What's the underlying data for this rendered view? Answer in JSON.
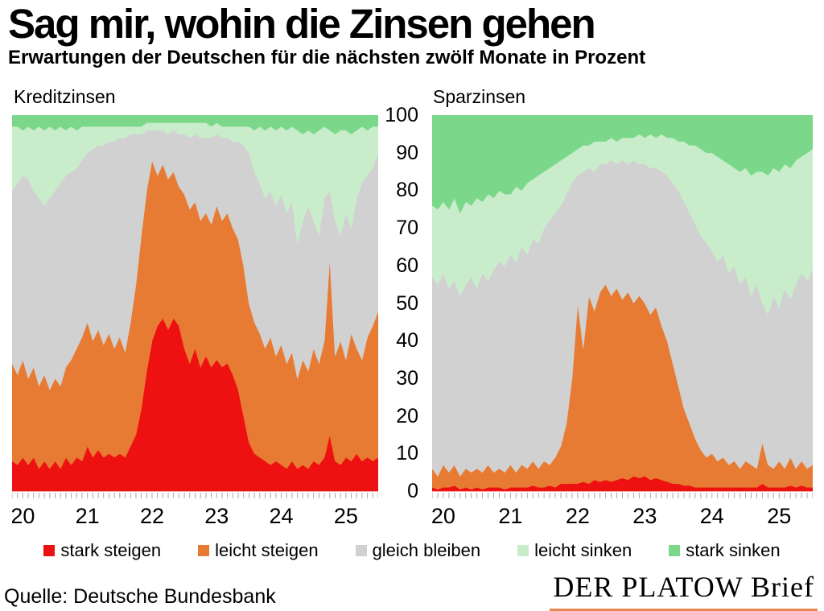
{
  "title": "Sag mir, wohin die Zinsen gehen",
  "subtitle": "Erwartungen der Deutschen für die nächsten zwölf Monate in Prozent",
  "source": "Quelle: Deutsche Bundesbank",
  "logo_text": "DER PLATOW Brief",
  "colors": {
    "stark_steigen": "#ee1111",
    "leicht_steigen": "#e87b33",
    "gleich_bleiben": "#d1d1d1",
    "leicht_sinken": "#c9edcb",
    "stark_sinken": "#7bd88a",
    "tick": "#a8a8a8",
    "logo_underline": "#e8874f"
  },
  "legend": [
    {
      "label": "stark steigen",
      "color": "stark_steigen"
    },
    {
      "label": "leicht steigen",
      "color": "leicht_steigen"
    },
    {
      "label": "gleich bleiben",
      "color": "gleich_bleiben"
    },
    {
      "label": "leicht sinken",
      "color": "leicht_sinken"
    },
    {
      "label": "stark sinken",
      "color": "stark_sinken"
    }
  ],
  "y_axis": {
    "ticks": [
      0,
      10,
      20,
      30,
      40,
      50,
      60,
      70,
      80,
      90,
      100
    ],
    "unit": "Prozent"
  },
  "chart_data": [
    {
      "type": "area",
      "stacked": true,
      "title": "Kreditzinsen",
      "ylabel": "Prozent",
      "ylim": [
        0,
        100
      ],
      "x_start": "2019-11",
      "x_end": "2025-07",
      "x_step": "month",
      "x_ticks": [
        {
          "label": "20",
          "index": 2
        },
        {
          "label": "21",
          "index": 14
        },
        {
          "label": "22",
          "index": 26
        },
        {
          "label": "23",
          "index": 38
        },
        {
          "label": "24",
          "index": 50
        },
        {
          "label": "25",
          "index": 62
        }
      ],
      "series": [
        {
          "name": "stark steigen",
          "color": "stark_steigen",
          "values": [
            8,
            7,
            9,
            7,
            9,
            6,
            8,
            6,
            8,
            6,
            9,
            7,
            9,
            8,
            12,
            9,
            11,
            9,
            10,
            9,
            10,
            9,
            12,
            15,
            22,
            32,
            40,
            44,
            46,
            43,
            46,
            44,
            38,
            34,
            38,
            33,
            36,
            33,
            35,
            33,
            34,
            31,
            27,
            20,
            13,
            10,
            9,
            8,
            7,
            8,
            7,
            6,
            8,
            6,
            7,
            6,
            8,
            7,
            9,
            15,
            8,
            7,
            9,
            8,
            10,
            8,
            9,
            8,
            9
          ]
        },
        {
          "name": "leicht steigen",
          "color": "leicht_steigen",
          "values": [
            26,
            24,
            26,
            23,
            24,
            22,
            23,
            21,
            22,
            22,
            24,
            28,
            29,
            33,
            33,
            31,
            32,
            30,
            32,
            29,
            31,
            28,
            33,
            40,
            46,
            48,
            48,
            40,
            41,
            40,
            39,
            37,
            41,
            41,
            39,
            39,
            38,
            38,
            41,
            39,
            40,
            39,
            40,
            40,
            37,
            35,
            33,
            30,
            34,
            28,
            32,
            28,
            29,
            24,
            28,
            26,
            30,
            27,
            31,
            47,
            28,
            33,
            26,
            34,
            28,
            27,
            32,
            36,
            39
          ]
        },
        {
          "name": "gleich bleiben",
          "color": "gleich_bleiben",
          "values": [
            46,
            51,
            49,
            53,
            47,
            50,
            45,
            51,
            50,
            54,
            51,
            50,
            48,
            47,
            45,
            51,
            49,
            53,
            51,
            55,
            53,
            57,
            50,
            40,
            27,
            16,
            8,
            12,
            9,
            12,
            11,
            14,
            16,
            19,
            18,
            22,
            20,
            23,
            19,
            22,
            20,
            23,
            26,
            32,
            40,
            40,
            40,
            40,
            39,
            40,
            40,
            40,
            40,
            36,
            37,
            44,
            34,
            34,
            38,
            18,
            36,
            28,
            39,
            28,
            40,
            47,
            43,
            42,
            42
          ]
        },
        {
          "name": "leicht sinken",
          "color": "leicht_sinken",
          "values": [
            17,
            15,
            12,
            14,
            16,
            19,
            20,
            19,
            16,
            15,
            12,
            12,
            10,
            9,
            7,
            6,
            5,
            5,
            4,
            4,
            3,
            3,
            2,
            2,
            2,
            2,
            2,
            2,
            2,
            3,
            2,
            3,
            3,
            4,
            3,
            4,
            4,
            3,
            3,
            3,
            3,
            4,
            4,
            5,
            7,
            11,
            15,
            18,
            17,
            20,
            18,
            22,
            20,
            30,
            23,
            20,
            23,
            28,
            19,
            16,
            23,
            28,
            22,
            25,
            18,
            15,
            12,
            11,
            7
          ]
        },
        {
          "name": "stark sinken",
          "color": "stark_sinken",
          "values": [
            3,
            3,
            4,
            3,
            4,
            3,
            4,
            3,
            4,
            3,
            4,
            3,
            4,
            3,
            3,
            3,
            3,
            3,
            3,
            3,
            3,
            3,
            3,
            3,
            3,
            2,
            2,
            2,
            2,
            2,
            2,
            2,
            2,
            2,
            2,
            2,
            2,
            3,
            2,
            3,
            3,
            3,
            3,
            3,
            3,
            4,
            3,
            4,
            3,
            4,
            3,
            4,
            3,
            4,
            5,
            4,
            5,
            4,
            3,
            4,
            5,
            4,
            4,
            5,
            4,
            3,
            4,
            3,
            3
          ]
        }
      ]
    },
    {
      "type": "area",
      "stacked": true,
      "title": "Sparzinsen",
      "ylabel": "Prozent",
      "ylim": [
        0,
        100
      ],
      "x_start": "2019-11",
      "x_end": "2025-07",
      "x_step": "month",
      "x_ticks": [
        {
          "label": "20",
          "index": 2
        },
        {
          "label": "21",
          "index": 14
        },
        {
          "label": "22",
          "index": 26
        },
        {
          "label": "23",
          "index": 38
        },
        {
          "label": "24",
          "index": 50
        },
        {
          "label": "25",
          "index": 62
        }
      ],
      "series": [
        {
          "name": "stark steigen",
          "color": "stark_steigen",
          "values": [
            1,
            0.5,
            1,
            1,
            1.5,
            0.5,
            1,
            0.5,
            1,
            0.5,
            1,
            1,
            1,
            0.5,
            1,
            1,
            1,
            1,
            1.5,
            1,
            1,
            1.5,
            1,
            2,
            2,
            2,
            2,
            2.5,
            2,
            3,
            2.5,
            3,
            2.5,
            3,
            3.5,
            3,
            4,
            3.5,
            4,
            3,
            3.5,
            3,
            2.5,
            2,
            2,
            1.5,
            1.5,
            1,
            1,
            1,
            1,
            1,
            1,
            1,
            1,
            1,
            1,
            1,
            1,
            2,
            1,
            1,
            1,
            1,
            1.5,
            1,
            1.5,
            1,
            1
          ]
        },
        {
          "name": "leicht steigen",
          "color": "leicht_steigen",
          "values": [
            5,
            3.5,
            6,
            4,
            5.5,
            3.5,
            5,
            4.5,
            5,
            4.5,
            6,
            4,
            5,
            4.5,
            6,
            4,
            6,
            5,
            6.5,
            5,
            7,
            5.5,
            8,
            10,
            16,
            28,
            48,
            35.5,
            50,
            45,
            50.5,
            52,
            49.5,
            51,
            47.5,
            50,
            46,
            48.5,
            46,
            44,
            45.5,
            41,
            37.5,
            32,
            26,
            20.5,
            16.5,
            13,
            10,
            8,
            9,
            7,
            8,
            6,
            7,
            5,
            7,
            6,
            5,
            11,
            6,
            5,
            7,
            5,
            7.5,
            5,
            6.5,
            5,
            6
          ]
        },
        {
          "name": "gleich bleiben",
          "color": "gleich_bleiben",
          "values": [
            51,
            51,
            51,
            49,
            49,
            48,
            49,
            52,
            48,
            53,
            49,
            54,
            55,
            55,
            56,
            56,
            58,
            57,
            59,
            60,
            62,
            65,
            65,
            64,
            61,
            52,
            34,
            47,
            34,
            37,
            34,
            32,
            36,
            33,
            37,
            34,
            38,
            35,
            37,
            39,
            37,
            41,
            44,
            48,
            52,
            55,
            56,
            57,
            57,
            57,
            54,
            53,
            54,
            51,
            52,
            49,
            49,
            45,
            49,
            37,
            40,
            46,
            41,
            48,
            42,
            49,
            50,
            50,
            52
          ]
        },
        {
          "name": "leicht sinken",
          "color": "leicht_sinken",
          "values": [
            19,
            20,
            19,
            21,
            22,
            22,
            22,
            19,
            24,
            19,
            23,
            19,
            19,
            19,
            16,
            20,
            15,
            19,
            16,
            18,
            15,
            14,
            13,
            12,
            10,
            8,
            7,
            7,
            6,
            8,
            6,
            6,
            6,
            6,
            6,
            7,
            6,
            8,
            7,
            9,
            8,
            10,
            10,
            12,
            13,
            16,
            18,
            21,
            23,
            24,
            26,
            28,
            25,
            29,
            26,
            30,
            29,
            32,
            30,
            35,
            37,
            34,
            36,
            33,
            35,
            33,
            31,
            34,
            32
          ]
        },
        {
          "name": "stark sinken",
          "color": "stark_sinken",
          "values": [
            24,
            25,
            23,
            25,
            22,
            26,
            23,
            24,
            22,
            23,
            21,
            22,
            20,
            21,
            21,
            19,
            20,
            18,
            17,
            16,
            15,
            14,
            13,
            12,
            11,
            10,
            9,
            8,
            8,
            7,
            7,
            7,
            6,
            7,
            6,
            6,
            6,
            5,
            6,
            5,
            6,
            5,
            6,
            6,
            7,
            7,
            8,
            8,
            9,
            10,
            10,
            11,
            12,
            13,
            14,
            15,
            14,
            16,
            15,
            15,
            16,
            14,
            15,
            13,
            14,
            12,
            11,
            10,
            9
          ]
        }
      ]
    }
  ]
}
